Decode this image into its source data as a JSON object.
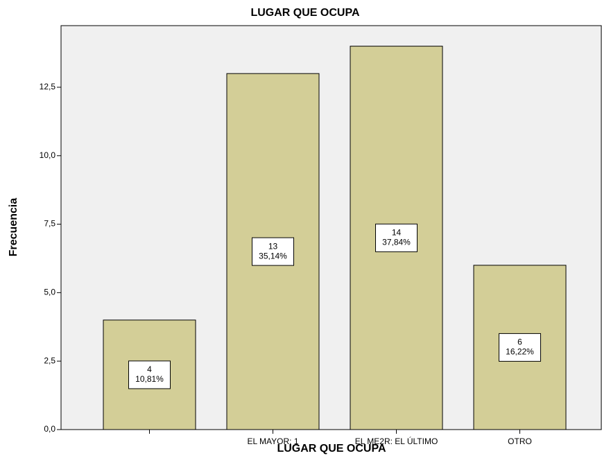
{
  "chart_data": {
    "type": "bar",
    "title": "LUGAR QUE OCUPA",
    "xlabel": "LUGAR QUE OCUPA",
    "ylabel": "Frecuencia",
    "categories": [
      null,
      "EL MAYOR: 1",
      "EL ME2R: EL ÚLTIMO",
      "OTRO"
    ],
    "values": [
      4,
      13,
      14,
      6
    ],
    "percents": [
      10.81,
      35.14,
      37.84,
      16.22
    ],
    "percent_labels": [
      "10,81%",
      "35,14%",
      "37,84%",
      "16,22%"
    ],
    "color": "#d3ce97",
    "ylim": [
      0,
      14.75
    ],
    "yticks": [
      {
        "value": 0,
        "label": "0,0"
      },
      {
        "value": 2.5,
        "label": "2,5"
      },
      {
        "value": 5,
        "label": "5,0"
      },
      {
        "value": 7.5,
        "label": "7,5"
      },
      {
        "value": 10,
        "label": "10,0"
      },
      {
        "value": 12.5,
        "label": "12,5"
      }
    ],
    "grid": false
  }
}
